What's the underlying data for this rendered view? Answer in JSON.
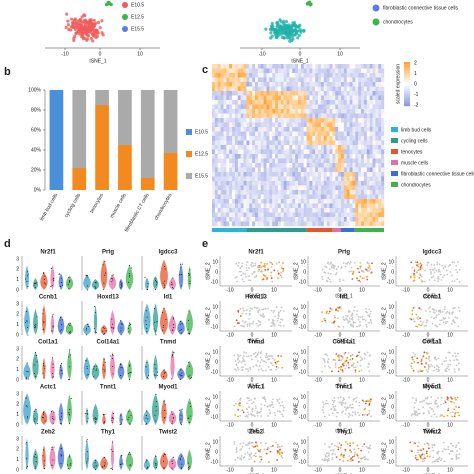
{
  "panel_labels": {
    "b": "b",
    "c": "c",
    "d": "d",
    "e": "e"
  },
  "tsne_top": {
    "xlabel": "tSNE_1",
    "xticks": [
      -10,
      0,
      10
    ],
    "left_legend": [
      {
        "name": "E10.5",
        "color": "#f05a5a"
      },
      {
        "name": "E12.5",
        "color": "#3cb44b"
      },
      {
        "name": "E15.5",
        "color": "#5b7fd6"
      }
    ],
    "right_legend": [
      {
        "name": "fibroblastic connective tissue cells",
        "color": "#5b7fd6"
      },
      {
        "name": "chondrocytes",
        "color": "#3cb44b"
      }
    ]
  },
  "chart_data": {
    "type": "stacked_bar",
    "categories": [
      "limb bud cells",
      "cycling cells",
      "tenocytes",
      "muscle cells",
      "fibroblastic CT cells",
      "chondrocytes"
    ],
    "series": [
      {
        "name": "E10.5",
        "color": "#4a90d9",
        "values": [
          100,
          0,
          0,
          0,
          0,
          0
        ]
      },
      {
        "name": "E12.5",
        "color": "#f28a1f",
        "values": [
          0,
          22,
          85,
          45,
          12,
          37
        ]
      },
      {
        "name": "E15.5",
        "color": "#aaaaaa",
        "values": [
          0,
          78,
          15,
          55,
          88,
          63
        ]
      }
    ],
    "ylim": [
      0,
      100
    ],
    "yticks": [
      {
        "value": 0,
        "label": "0%"
      },
      {
        "value": 20,
        "label": "20%"
      },
      {
        "value": 40,
        "label": "40%"
      },
      {
        "value": 60,
        "label": "60%"
      },
      {
        "value": 80,
        "label": "80%"
      },
      {
        "value": 100,
        "label": "100%"
      }
    ]
  },
  "heatmap": {
    "legend_title": "scaled expression",
    "legend_ticks": [
      2,
      1,
      0,
      -1,
      -2
    ],
    "cell_types": [
      {
        "name": "limb bud cells",
        "color": "#29b6d6"
      },
      {
        "name": "cycling cells",
        "color": "#2a9d8f"
      },
      {
        "name": "tenocytes",
        "color": "#e4572e"
      },
      {
        "name": "muscle cells",
        "color": "#e36fa8"
      },
      {
        "name": "fibroblastic connective tissue cells",
        "color": "#3a6fd8"
      },
      {
        "name": "chondrocytes",
        "color": "#3cb44b"
      }
    ]
  },
  "violin": {
    "yticks": [
      0,
      1,
      2,
      3
    ],
    "genes": [
      "Nr2f1",
      "Prtg",
      "Igdcc3",
      "Ccnb1",
      "Hoxd13",
      "Id1",
      "Col1a1",
      "Col14a1",
      "Tnmd",
      "Actc1",
      "Tnnt1",
      "Myod1",
      "Zeb2",
      "Thy1",
      "Twist2"
    ]
  },
  "feature_plots": {
    "xlabel": "tSNE_1",
    "ylabel": "tSNE_2",
    "xticks": [
      -10,
      0,
      10
    ],
    "yticks": [
      -10,
      0,
      10
    ],
    "genes": [
      "Nr2f1",
      "Prtg",
      "Igdcc3",
      "Hoxd13",
      "Id1",
      "Ccnb1",
      "Tnmd",
      "Col14a1",
      "Col1a1",
      "Actc1",
      "Tnnt1",
      "Myod1",
      "Zeb2",
      "Thy1",
      "Twist2"
    ]
  }
}
